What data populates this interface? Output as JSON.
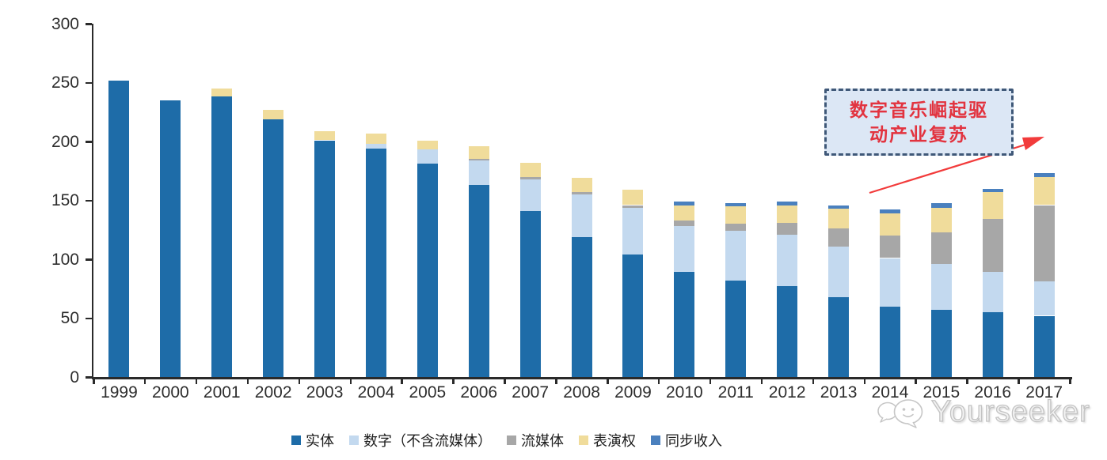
{
  "chart_data": {
    "type": "bar",
    "variant": "stacked",
    "title": "",
    "xlabel": "",
    "ylabel": "",
    "ylim": [
      0,
      300
    ],
    "ytick_labels": [
      "0",
      "50",
      "100",
      "150",
      "200",
      "250",
      "300"
    ],
    "yticks": [
      0,
      50,
      100,
      150,
      200,
      250,
      300
    ],
    "grid": false,
    "legend_position": "bottom",
    "categories": [
      "1999",
      "2000",
      "2001",
      "2002",
      "2003",
      "2004",
      "2005",
      "2006",
      "2007",
      "2008",
      "2009",
      "2010",
      "2011",
      "2012",
      "2013",
      "2014",
      "2015",
      "2016",
      "2017"
    ],
    "series": [
      {
        "name": "实体",
        "color": "#1E6CA8",
        "values": [
          252,
          235,
          238,
          219,
          201,
          194,
          181,
          163,
          141,
          119,
          104,
          89,
          82,
          77,
          68,
          60,
          57,
          55,
          52
        ]
      },
      {
        "name": "数字（不含流媒体）",
        "color": "#C3D9EF",
        "values": [
          0,
          0,
          0,
          0,
          0,
          4,
          12,
          21,
          27,
          36,
          40,
          39,
          42,
          44,
          43,
          41,
          39,
          34,
          29
        ]
      },
      {
        "name": "流媒体",
        "color": "#A7A7A7",
        "values": [
          0,
          0,
          0,
          0,
          0,
          0,
          0,
          1,
          2,
          2,
          2,
          5,
          6,
          10,
          15,
          19,
          27,
          45,
          65
        ]
      },
      {
        "name": "表演权",
        "color": "#F0DC9B",
        "values": [
          0,
          0,
          7,
          8,
          8,
          9,
          8,
          11,
          12,
          12,
          13,
          13,
          15,
          15,
          17,
          19,
          21,
          23,
          24
        ]
      },
      {
        "name": "同步收入",
        "color": "#4A80BE",
        "values": [
          0,
          0,
          0,
          0,
          0,
          0,
          0,
          0,
          0,
          0,
          0,
          3,
          3,
          3,
          3,
          3,
          4,
          3,
          3
        ]
      }
    ]
  },
  "annotation": {
    "line1": "数字音乐崛起驱",
    "line2": "动产业复苏",
    "box_fill": "#DCE7F5",
    "box_border": "#3F5878",
    "text_color": "#E2333F",
    "arrow_color": "#F23B3B"
  },
  "watermark": {
    "text": "Yourseeker",
    "logo": "chat-bubbles-smiley-icon",
    "color": "#C6C6C6"
  }
}
